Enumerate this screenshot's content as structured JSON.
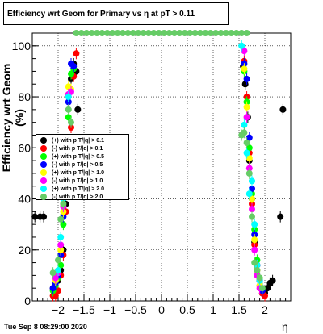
{
  "chart_data": {
    "type": "scatter",
    "title": "Efficiency wrt Geom for Primary vs   η at pT > 0.11",
    "xlabel": "η",
    "ylabel": "Efficiency wrt Geom (%)",
    "xlim": [
      -2.5,
      2.5
    ],
    "ylim": [
      0,
      105
    ],
    "xticks": [
      -2,
      -1.5,
      -1,
      -0.5,
      0,
      0.5,
      1,
      1.5,
      2
    ],
    "xtick_labels": [
      "−2",
      "−1.5",
      "−1",
      "−0.5",
      "0",
      "0.5",
      "1",
      "1.5",
      "2"
    ],
    "yticks": [
      0,
      20,
      40,
      60,
      80,
      100
    ],
    "ytick_labels": [
      "0",
      "20",
      "40",
      "60",
      "80",
      "100"
    ],
    "grid": true,
    "legend_position": "left-middle",
    "series": [
      {
        "name": "(+) with p T/|q| > 0.1",
        "color": "#000000",
        "points": [
          [
            -2.45,
            33
          ],
          [
            -2.35,
            33
          ],
          [
            -2.28,
            33
          ],
          [
            -2.1,
            5
          ],
          [
            -2.05,
            3
          ],
          [
            -2.0,
            8
          ],
          [
            -1.95,
            12
          ],
          [
            -1.9,
            20
          ],
          [
            -1.85,
            38
          ],
          [
            -1.8,
            62
          ],
          [
            -1.75,
            87
          ],
          [
            -1.7,
            93
          ],
          [
            -1.65,
            90
          ],
          [
            -1.62,
            75
          ],
          [
            1.58,
            92
          ],
          [
            1.62,
            85
          ],
          [
            1.67,
            72
          ],
          [
            1.7,
            55
          ],
          [
            1.75,
            40
          ],
          [
            1.8,
            23
          ],
          [
            1.85,
            14
          ],
          [
            1.9,
            8
          ],
          [
            1.95,
            3
          ],
          [
            2.0,
            3
          ],
          [
            2.05,
            5
          ],
          [
            2.1,
            7
          ],
          [
            2.15,
            8
          ],
          [
            2.3,
            33
          ],
          [
            2.35,
            75
          ]
        ]
      },
      {
        "name": "(-) with p T/|q| > 0.1",
        "color": "#ff0000",
        "points": [
          [
            -2.1,
            2
          ],
          [
            -2.05,
            2
          ],
          [
            -2.0,
            4
          ],
          [
            -1.95,
            10
          ],
          [
            -1.9,
            18
          ],
          [
            -1.85,
            35
          ],
          [
            -1.8,
            60
          ],
          [
            -1.75,
            68
          ],
          [
            -1.7,
            88
          ],
          [
            -1.65,
            97
          ],
          [
            1.6,
            94
          ],
          [
            1.65,
            80
          ],
          [
            1.7,
            58
          ],
          [
            1.75,
            38
          ],
          [
            1.8,
            22
          ],
          [
            1.85,
            12
          ],
          [
            1.9,
            6
          ],
          [
            1.95,
            3
          ],
          [
            2.0,
            2
          ]
        ]
      },
      {
        "name": "(+) with p T/|q| > 0.5",
        "color": "#00ff00",
        "points": [
          [
            -2.1,
            4
          ],
          [
            -2.05,
            6
          ],
          [
            -2.0,
            9
          ],
          [
            -1.95,
            14
          ],
          [
            -1.9,
            30
          ],
          [
            -1.85,
            50
          ],
          [
            -1.8,
            72
          ],
          [
            -1.75,
            89
          ],
          [
            -1.7,
            91
          ],
          [
            1.6,
            90
          ],
          [
            1.65,
            78
          ],
          [
            1.7,
            60
          ],
          [
            1.75,
            42
          ],
          [
            1.8,
            28
          ],
          [
            1.85,
            16
          ],
          [
            1.9,
            9
          ],
          [
            1.95,
            5
          ]
        ]
      },
      {
        "name": "(-) with p T/|q| > 0.5",
        "color": "#0000ff",
        "points": [
          [
            -2.1,
            5
          ],
          [
            -2.05,
            7
          ],
          [
            -2.0,
            10
          ],
          [
            -1.95,
            18
          ],
          [
            -1.9,
            33
          ],
          [
            -1.85,
            52
          ],
          [
            -1.8,
            78
          ],
          [
            -1.75,
            93
          ],
          [
            -1.7,
            92
          ],
          [
            1.6,
            93
          ],
          [
            1.65,
            87
          ],
          [
            1.7,
            64
          ],
          [
            1.75,
            44
          ],
          [
            1.8,
            26
          ],
          [
            1.85,
            14
          ],
          [
            1.9,
            8
          ],
          [
            1.95,
            4
          ]
        ]
      },
      {
        "name": "(+) with p T/|q| > 1.0",
        "color": "#ffff00",
        "points": [
          [
            -2.05,
            8
          ],
          [
            -2.0,
            12
          ],
          [
            -1.95,
            20
          ],
          [
            -1.9,
            35
          ],
          [
            -1.85,
            58
          ],
          [
            -1.8,
            84
          ],
          [
            -1.75,
            83
          ],
          [
            1.6,
            91
          ],
          [
            1.65,
            76
          ],
          [
            1.7,
            56
          ],
          [
            1.75,
            40
          ],
          [
            1.8,
            24
          ],
          [
            1.85,
            12
          ],
          [
            1.9,
            6
          ]
        ]
      },
      {
        "name": "(-) with p T/|q| > 1.0",
        "color": "#ff00ff",
        "points": [
          [
            -2.05,
            9
          ],
          [
            -2.0,
            11
          ],
          [
            -1.95,
            22
          ],
          [
            -1.9,
            37
          ],
          [
            -1.85,
            60
          ],
          [
            -1.8,
            81
          ],
          [
            -1.75,
            82
          ],
          [
            1.6,
            98
          ],
          [
            1.65,
            72
          ],
          [
            1.7,
            52
          ],
          [
            1.75,
            36
          ],
          [
            1.8,
            20
          ],
          [
            1.85,
            10
          ],
          [
            1.9,
            5
          ]
        ]
      },
      {
        "name": "(+) with p T/|q| > 2.0",
        "color": "#00ffff",
        "points": [
          [
            -2.0,
            12
          ],
          [
            -1.95,
            25
          ],
          [
            -1.9,
            40
          ],
          [
            -1.85,
            62
          ],
          [
            -1.8,
            80
          ],
          [
            1.55,
            100
          ],
          [
            1.6,
            69
          ],
          [
            1.65,
            58
          ],
          [
            1.7,
            42
          ],
          [
            1.75,
            47
          ],
          [
            1.8,
            30
          ],
          [
            1.85,
            14
          ],
          [
            1.9,
            8
          ]
        ]
      },
      {
        "name": "(-) with p T/|q| > 2.0",
        "color": "#66cc66",
        "points": [
          [
            -2.1,
            11
          ],
          [
            -2.0,
            16
          ],
          [
            -1.95,
            32
          ],
          [
            -1.9,
            38
          ],
          [
            -1.85,
            57
          ],
          [
            -1.8,
            75
          ],
          [
            -1.75,
            70
          ],
          [
            1.55,
            65
          ],
          [
            1.6,
            66
          ],
          [
            1.65,
            62
          ],
          [
            1.7,
            50
          ],
          [
            1.75,
            33
          ],
          [
            1.8,
            15
          ],
          [
            1.85,
            12
          ],
          [
            1.9,
            9
          ],
          [
            1.95,
            5
          ]
        ],
        "line_at_105": [
          -1.65,
          1.65
        ]
      }
    ]
  },
  "footer": "Tue Sep  8 08:29:00 2020"
}
